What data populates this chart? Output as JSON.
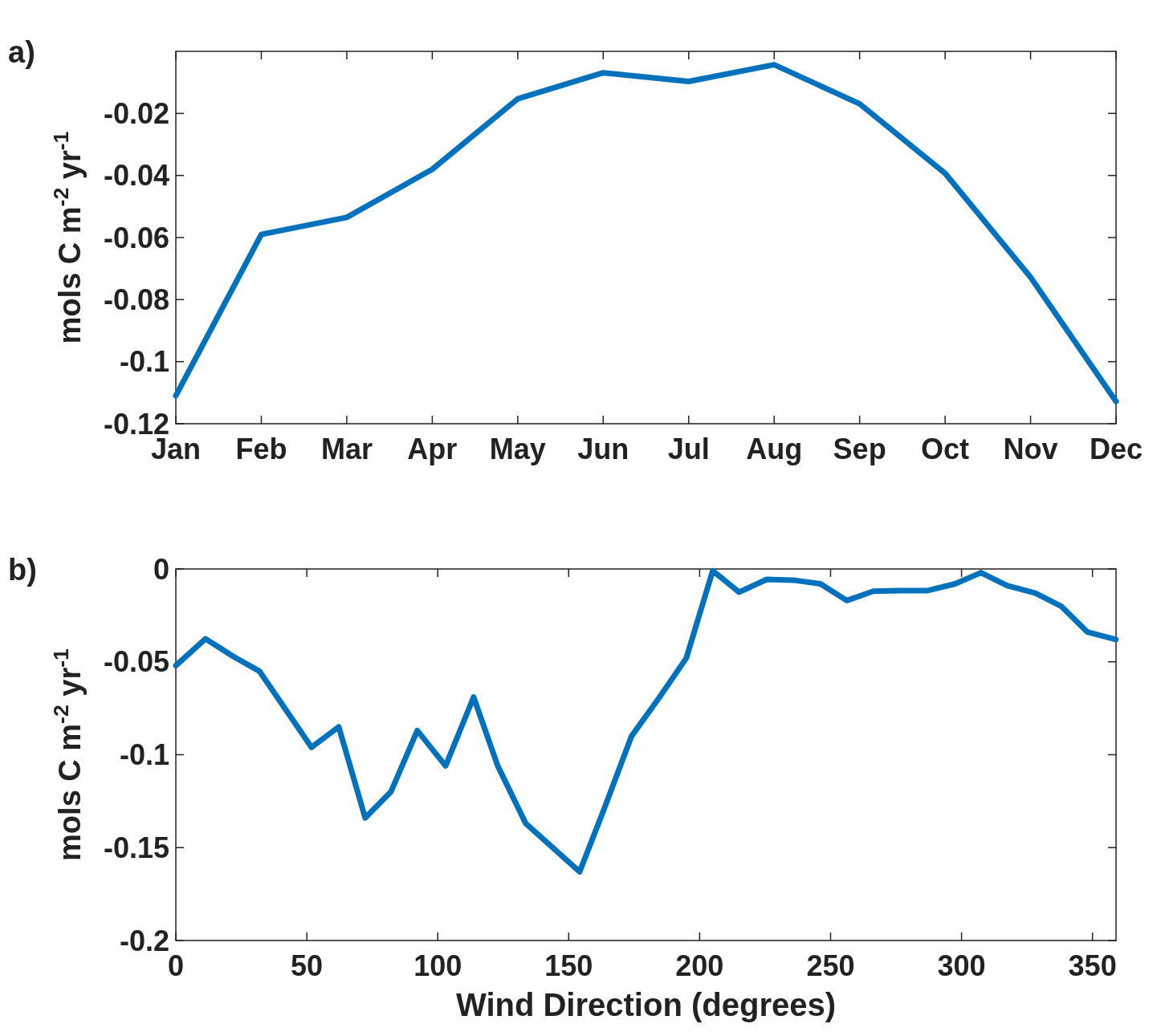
{
  "chart_data": [
    {
      "type": "line",
      "ylabel": "mols C m$^{-2}$ yr$^{-1}$",
      "annotations": [
        "a)"
      ],
      "categories": [
        "Jan",
        "Feb",
        "Mar",
        "Apr",
        "May",
        "Jun",
        "Jul",
        "Aug",
        "Sep",
        "Oct",
        "Nov",
        "Dec"
      ],
      "series": [
        {
          "color": "#0072bd",
          "values": [
            -0.111,
            -0.059,
            -0.0535,
            -0.038,
            -0.0153,
            -0.0069,
            -0.0097,
            -0.0043,
            -0.0169,
            -0.0393,
            -0.0728,
            -0.1128
          ]
        }
      ],
      "ylim": [
        -0.12,
        0
      ],
      "yticks": [
        -0.12,
        -0.1,
        -0.08,
        -0.06,
        -0.04,
        -0.02
      ],
      "grid": false,
      "line_style": "solid",
      "marker": "none"
    },
    {
      "type": "line",
      "xlabel": "Wind Direction (degrees)",
      "ylabel": "mols C m$^{-2}$ yr$^{-1}$",
      "annotations": [
        "b)"
      ],
      "x": [
        0,
        11.3,
        21.8,
        31.9,
        51.8,
        62.2,
        72.3,
        82.1,
        92.2,
        103,
        113.7,
        122.9,
        133.6,
        154.2,
        163.3,
        174,
        184.2,
        194.9,
        205,
        215.1,
        225.6,
        235.7,
        246.1,
        256.2,
        266.3,
        276.1,
        286.8,
        297.6,
        307.4,
        317.5,
        328.2,
        338,
        348.1,
        358.9
      ],
      "series": [
        {
          "color": "#0072bd",
          "values": [
            -0.052,
            -0.0376,
            -0.047,
            -0.055,
            -0.096,
            -0.085,
            -0.134,
            -0.12,
            -0.087,
            -0.106,
            -0.069,
            -0.106,
            -0.137,
            -0.163,
            -0.13,
            -0.09,
            -0.07,
            -0.048,
            -0.001,
            -0.0125,
            -0.0056,
            -0.006,
            -0.008,
            -0.017,
            -0.012,
            -0.0117,
            -0.0117,
            -0.008,
            -0.002,
            -0.009,
            -0.013,
            -0.02,
            -0.034,
            -0.038
          ]
        }
      ],
      "xlim": [
        0,
        359
      ],
      "xticks": [
        0,
        50,
        100,
        150,
        200,
        250,
        300,
        350
      ],
      "ylim": [
        -0.2,
        0
      ],
      "yticks": [
        -0.2,
        -0.15,
        -0.1,
        -0.05,
        0
      ],
      "grid": false,
      "line_style": "solid",
      "marker": "none"
    }
  ]
}
